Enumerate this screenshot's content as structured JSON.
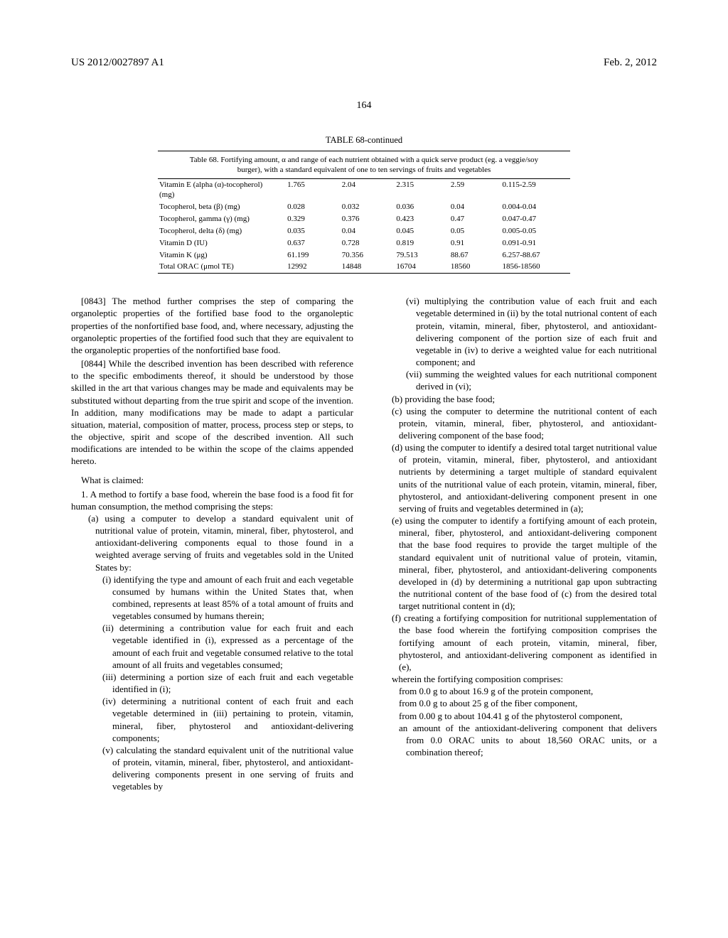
{
  "header": {
    "left": "US 2012/0027897 A1",
    "right": "Feb. 2, 2012"
  },
  "page_number": "164",
  "table": {
    "title": "TABLE 68-continued",
    "caption": "Table 68. Fortifying amount, α and range of each nutrient obtained with a quick serve product (eg. a veggie/soy burger), with a standard equivalent of one to ten servings of fruits and vegetables",
    "rows": [
      {
        "label": "Vitamin E (alpha (α)-tocopherol) (mg)",
        "c1": "1.765",
        "c2": "2.04",
        "c3": "2.315",
        "c4": "2.59",
        "range": "0.115-2.59"
      },
      {
        "label": "Tocopherol, beta (β) (mg)",
        "c1": "0.028",
        "c2": "0.032",
        "c3": "0.036",
        "c4": "0.04",
        "range": "0.004-0.04"
      },
      {
        "label": "Tocopherol, gamma (γ) (mg)",
        "c1": "0.329",
        "c2": "0.376",
        "c3": "0.423",
        "c4": "0.47",
        "range": "0.047-0.47"
      },
      {
        "label": "Tocopherol, delta (δ) (mg)",
        "c1": "0.035",
        "c2": "0.04",
        "c3": "0.045",
        "c4": "0.05",
        "range": "0.005-0.05"
      },
      {
        "label": "Vitamin D (IU)",
        "c1": "0.637",
        "c2": "0.728",
        "c3": "0.819",
        "c4": "0.91",
        "range": "0.091-0.91"
      },
      {
        "label": "Vitamin K (μg)",
        "c1": "61.199",
        "c2": "70.356",
        "c3": "79.513",
        "c4": "88.67",
        "range": "6.257-88.67"
      },
      {
        "label": "Total ORAC (μmol TE)",
        "c1": "12992",
        "c2": "14848",
        "c3": "16704",
        "c4": "18560",
        "range": "1856-18560"
      }
    ]
  },
  "left_col": {
    "p0843": "[0843]   The method further comprises the step of comparing the organoleptic properties of the fortified base food to the organoleptic properties of the nonfortified base food, and, where necessary, adjusting the organoleptic properties of the fortified food such that they are equivalent to the organoleptic properties of the nonfortified base food.",
    "p0844": "[0844]   While the described invention has been described with reference to the specific embodiments thereof, it should be understood by those skilled in the art that various changes may be made and equivalents may be substituted without departing from the true spirit and scope of the invention. In addition, many modifications may be made to adapt a particular situation, material, composition of matter, process, process step or steps, to the objective, spirit and scope of the described invention. All such modifications are intended to be within the scope of the claims appended hereto.",
    "claims_head": "What is claimed:",
    "claim1": "1. A method to fortify a base food, wherein the base food is a food fit for human consumption, the method comprising the steps:",
    "a": "(a) using a computer to develop a standard equivalent unit of nutritional value of protein, vitamin, mineral, fiber, phytosterol, and antioxidant-delivering components equal to those found in a weighted average serving of fruits and vegetables sold in the United States by:",
    "i": "(i) identifying the type and amount of each fruit and each vegetable consumed by humans within the United States that, when combined, represents at least 85% of a total amount of fruits and vegetables consumed by humans therein;",
    "ii": "(ii) determining a contribution value for each fruit and each vegetable identified in (i), expressed as a percentage of the amount of each fruit and vegetable consumed relative to the total amount of all fruits and vegetables consumed;",
    "iii": "(iii) determining a portion size of each fruit and each vegetable identified in (i);",
    "iv": "(iv) determining a nutritional content of each fruit and each vegetable determined in (iii) pertaining to protein, vitamin, mineral, fiber, phytosterol and antioxidant-delivering components;",
    "v": "(v) calculating the standard equivalent unit of the nutritional value of protein, vitamin, mineral, fiber, phytosterol, and antioxidant-delivering components present in one serving of fruits and vegetables by"
  },
  "right_col": {
    "vi": "(vi) multiplying the contribution value of each fruit and each vegetable determined in (ii) by the total nutrional content of each protein, vitamin, mineral, fiber, phytosterol, and antioxidant-delivering component of the portion size of each fruit and vegetable in (iv) to derive a weighted value for each nutritional component; and",
    "vii": "(vii) summing the weighted values for each nutritional component derived in (vi);",
    "b": "(b) providing the base food;",
    "c": "(c) using the computer to determine the nutritional content of each protein, vitamin, mineral, fiber, phytosterol, and antioxidant-delivering component of the base food;",
    "d": "(d) using the computer to identify a desired total target nutritional value of protein, vitamin, mineral, fiber, phytosterol, and antioxidant nutrients by determining a target multiple of standard equivalent units of the nutritional value of each protein, vitamin, mineral, fiber, phytosterol, and antioxidant-delivering component present in one serving of fruits and vegetables determined in (a);",
    "e": "(e) using the computer to identify a fortifying amount of each protein, mineral, fiber, phytosterol, and antioxidant-delivering component that the base food requires to provide the target multiple of the standard equivalent unit of nutritional value of protein, vitamin, mineral, fiber, phytosterol, and antioxidant-delivering components developed in (d) by determining a nutritional gap upon subtracting the nutritional content of the base food of (c) from the desired total target nutritional content in (d);",
    "f": "(f) creating a fortifying composition for nutritional supplementation of the base food wherein the fortifying composition comprises the fortifying amount of each protein, vitamin, mineral, fiber, phytosterol, and antioxidant-delivering component as identified in (e),",
    "wherein": "wherein the fortifying composition comprises:",
    "w1": "from 0.0 g to about 16.9 g of the protein component,",
    "w2": "from 0.0 g to about 25 g of the fiber component,",
    "w3": "from 0.00 g to about 104.41 g of the phytosterol component,",
    "w4": "an amount of the antioxidant-delivering component that delivers from 0.0 ORAC units to about 18,560 ORAC units, or a combination thereof;"
  }
}
